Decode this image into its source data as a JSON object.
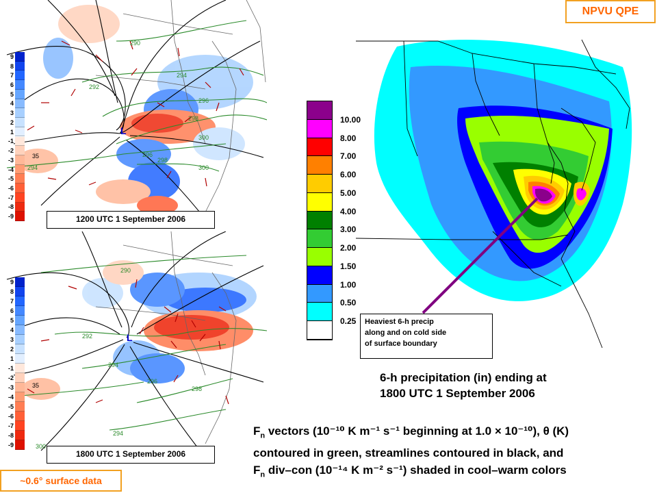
{
  "left_panels": {
    "scale_ticks": [
      "9",
      "8",
      "7",
      "6",
      "5",
      "4",
      "3",
      "2",
      "1",
      "-1",
      "-2",
      "-3",
      "-4",
      "-5",
      "-6",
      "-7",
      "-8",
      "-9"
    ],
    "scale_colors": [
      "#0022cc",
      "#1144ee",
      "#2266ff",
      "#4488ff",
      "#66a6ff",
      "#88bbff",
      "#a8d0ff",
      "#c8e2ff",
      "#e2efff",
      "#ffe8dc",
      "#ffd2bc",
      "#ffb898",
      "#ff9c74",
      "#ff7e54",
      "#ff6038",
      "#ff4422",
      "#ee2a10",
      "#dd1100"
    ],
    "top_map": {
      "label": "1200 UTC 1 September 2006",
      "low_marker": "L",
      "theta_labels": [
        "290",
        "292",
        "294",
        "296",
        "298",
        "300",
        "294",
        "296",
        "298",
        "300"
      ],
      "div_label": "35"
    },
    "bottom_map": {
      "label": "1800 UTC 1 September 2006",
      "low_marker": "L",
      "theta_labels": [
        "290",
        "292",
        "294",
        "296",
        "298",
        "294",
        "300"
      ],
      "div_label": "35"
    }
  },
  "right_panel": {
    "badge": "NPVU QPE",
    "legend_values": [
      "10.00",
      "8.00",
      "7.00",
      "6.00",
      "5.00",
      "4.00",
      "3.00",
      "2.00",
      "1.50",
      "1.00",
      "0.50",
      "0.25"
    ],
    "legend_colors": [
      "#8b008b",
      "#ff00ff",
      "#ff0000",
      "#ff8000",
      "#ffcc00",
      "#ffff00",
      "#008000",
      "#33cc33",
      "#99ff00",
      "#0000ff",
      "#3399ff",
      "#00ffff",
      "#ffffff"
    ],
    "callout": [
      "Heaviest 6-h precip",
      "along and on cold side",
      "of surface boundary"
    ],
    "caption": [
      "6-h precipitation (in) ending at",
      "1800 UTC 1 September 2006"
    ]
  },
  "bottom_caption": {
    "line1_pre": "F",
    "line1_sub": "n",
    "line1_post": " vectors (10⁻¹⁰ K m⁻¹ s⁻¹ beginning at 1.0 × 10⁻¹⁰), θ (K)",
    "line2": "contoured in green, streamlines contoured in black, and",
    "line3_pre": "F",
    "line3_sub": "n",
    "line3_post": " div–con (10⁻¹⁴ K m⁻² s⁻¹) shaded in cool–warm colors"
  },
  "surface_badge": "~0.6° surface data"
}
